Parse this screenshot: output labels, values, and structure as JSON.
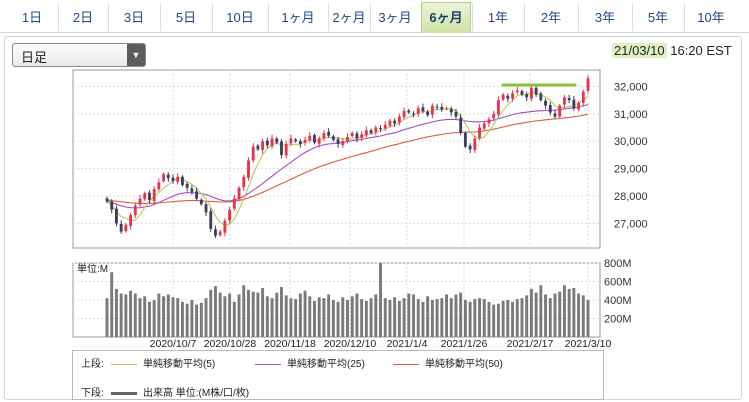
{
  "tabs": [
    {
      "label": "1日"
    },
    {
      "label": "2日"
    },
    {
      "label": "3日"
    },
    {
      "label": "5日"
    },
    {
      "label": "10日"
    },
    {
      "label": "1ヶ月"
    },
    {
      "label": "2ヶ月"
    },
    {
      "label": "3ヶ月"
    },
    {
      "label": "6ヶ月"
    },
    {
      "label": "1年"
    },
    {
      "label": "2年"
    },
    {
      "label": "3年"
    },
    {
      "label": "5年"
    },
    {
      "label": "10年"
    }
  ],
  "active_tab": "6ヶ月",
  "dropdown": {
    "value": "日足"
  },
  "timestamp": {
    "date": "21/03/10",
    "time": "16:20 EST"
  },
  "legend": {
    "upper_label": "上段:",
    "lower_label": "下段:",
    "items": [
      {
        "label": "単純移動平均(5)",
        "color": "#b7c95a"
      },
      {
        "label": "単純移動平均(25)",
        "color": "#a54fc4"
      },
      {
        "label": "単純移動平均(50)",
        "color": "#d9603a"
      }
    ],
    "volume": {
      "label": "出来高 単位:(M株/口/枚)",
      "color": "#666666"
    }
  },
  "chart_data": [
    {
      "type": "candlestick",
      "title": "",
      "x_ticks": [
        "2020/10/7",
        "2020/10/28",
        "2020/11/18",
        "2020/12/10",
        "2021/1/4",
        "2021/1/26",
        "2021/2/17",
        "2021/3/10"
      ],
      "y_ticks": [
        "27,000",
        "28,000",
        "29,000",
        "30,000",
        "31,000",
        "32,000"
      ],
      "ylim": [
        26100,
        32600
      ],
      "up_color": "#e8334a",
      "down_color": "#3c3c5e",
      "closes": [
        27800,
        27500,
        27000,
        26700,
        26950,
        27300,
        27650,
        27900,
        28100,
        27850,
        28250,
        28500,
        28800,
        28650,
        28550,
        28700,
        28400,
        28300,
        28150,
        27900,
        27700,
        27400,
        26800,
        26550,
        26700,
        27100,
        27500,
        27900,
        28300,
        28700,
        29300,
        29800,
        29700,
        30000,
        29850,
        30100,
        29950,
        29500,
        29900,
        30100,
        30000,
        29900,
        30050,
        30200,
        29950,
        30100,
        30300,
        30200,
        30050,
        29900,
        30000,
        30150,
        30300,
        30100,
        30250,
        30400,
        30300,
        30500,
        30450,
        30600,
        30750,
        30650,
        30900,
        31100,
        31050,
        31000,
        31200,
        31100,
        30950,
        31300,
        31250,
        31150,
        31200,
        31050,
        30900,
        30300,
        29800,
        29700,
        30100,
        30500,
        30650,
        30800,
        31000,
        31500,
        31700,
        31550,
        31750,
        31850,
        31700,
        31600,
        31950,
        31700,
        31500,
        31300,
        31050,
        30900,
        31300,
        31600,
        31500,
        31200,
        31400,
        31800,
        32300
      ],
      "ma5": [
        27800,
        27650,
        27433,
        27250,
        27190,
        27090,
        27120,
        27300,
        27580,
        27800,
        28010,
        28120,
        28300,
        28410,
        28550,
        28640,
        28620,
        28520,
        28420,
        28290,
        28090,
        27890,
        27590,
        27270,
        27030,
        26930,
        26970,
        27150,
        27500,
        27900,
        28340,
        28800,
        29160,
        29500,
        29730,
        29890,
        29920,
        29870,
        29860,
        29870,
        29890,
        29880,
        29990,
        30050,
        30020,
        30040,
        30120,
        30150,
        30120,
        30110,
        30090,
        30060,
        30080,
        30100,
        30160,
        30240,
        30270,
        30310,
        30380,
        30450,
        30520,
        30590,
        30670,
        30800,
        30890,
        30940,
        31050,
        31090,
        31060,
        31130,
        31160,
        31160,
        31180,
        31190,
        31110,
        30920,
        30650,
        30340,
        30160,
        30080,
        30160,
        30370,
        30610,
        30890,
        31130,
        31310,
        31500,
        31670,
        31710,
        31690,
        31770,
        31760,
        31690,
        31610,
        31500,
        31290,
        31210,
        31230,
        31270,
        31300,
        31400,
        31500,
        31640
      ],
      "ma25": [
        27800,
        27760,
        27700,
        27640,
        27600,
        27570,
        27560,
        27570,
        27600,
        27630,
        27690,
        27760,
        27840,
        27920,
        27990,
        28060,
        28100,
        28120,
        28120,
        28110,
        28090,
        28050,
        27990,
        27920,
        27860,
        27820,
        27820,
        27850,
        27910,
        27990,
        28090,
        28210,
        28330,
        28460,
        28590,
        28720,
        28860,
        28980,
        29110,
        29230,
        29360,
        29480,
        29590,
        29680,
        29760,
        29830,
        29870,
        29900,
        29920,
        29930,
        29960,
        29990,
        30020,
        30040,
        30070,
        30100,
        30130,
        30160,
        30190,
        30230,
        30270,
        30310,
        30360,
        30420,
        30470,
        30520,
        30570,
        30620,
        30660,
        30700,
        30740,
        30770,
        30790,
        30800,
        30790,
        30770,
        30740,
        30720,
        30710,
        30710,
        30720,
        30740,
        30770,
        30820,
        30870,
        30920,
        30970,
        31010,
        31040,
        31060,
        31080,
        31100,
        31110,
        31120,
        31130,
        31140,
        31160,
        31180,
        31200,
        31220,
        31250,
        31290,
        31340
      ],
      "ma50": [
        27850,
        27830,
        27810,
        27790,
        27770,
        27750,
        27740,
        27730,
        27730,
        27730,
        27740,
        27750,
        27760,
        27780,
        27790,
        27810,
        27820,
        27830,
        27830,
        27830,
        27820,
        27810,
        27800,
        27790,
        27780,
        27780,
        27790,
        27810,
        27840,
        27880,
        27930,
        27990,
        28060,
        28130,
        28210,
        28290,
        28370,
        28450,
        28530,
        28610,
        28690,
        28770,
        28850,
        28920,
        28990,
        29060,
        29120,
        29180,
        29240,
        29290,
        29340,
        29390,
        29440,
        29490,
        29540,
        29580,
        29630,
        29680,
        29730,
        29780,
        29830,
        29870,
        29910,
        29960,
        30000,
        30040,
        30080,
        30120,
        30160,
        30190,
        30220,
        30250,
        30280,
        30300,
        30310,
        30320,
        30330,
        30330,
        30340,
        30360,
        30380,
        30410,
        30440,
        30480,
        30520,
        30560,
        30600,
        30630,
        30660,
        30690,
        30720,
        30740,
        30760,
        30780,
        30800,
        30810,
        30830,
        30850,
        30870,
        30890,
        30920,
        30950,
        30990
      ]
    },
    {
      "type": "bar",
      "title": "",
      "ylabel": "単位:M",
      "y_ticks": [
        "200M",
        "400M",
        "600M",
        "800M"
      ],
      "ylim": [
        0,
        800
      ],
      "color": "#7a7a7a",
      "values": [
        420,
        700,
        520,
        470,
        460,
        500,
        470,
        420,
        440,
        380,
        400,
        470,
        440,
        460,
        430,
        420,
        380,
        360,
        400,
        350,
        370,
        420,
        510,
        550,
        480,
        440,
        470,
        380,
        460,
        560,
        510,
        490,
        480,
        530,
        440,
        420,
        480,
        540,
        450,
        420,
        410,
        470,
        500,
        440,
        390,
        430,
        420,
        460,
        400,
        380,
        430,
        400,
        440,
        470,
        410,
        390,
        420,
        460,
        800,
        420,
        400,
        430,
        390,
        420,
        470,
        460,
        410,
        380,
        440,
        400,
        410,
        420,
        460,
        420,
        460,
        480,
        400,
        380,
        410,
        420,
        410,
        380,
        350,
        360,
        390,
        400,
        380,
        410,
        420,
        450,
        520,
        480,
        560,
        460,
        420,
        470,
        490,
        560,
        520,
        530,
        470,
        450,
        400
      ]
    }
  ]
}
